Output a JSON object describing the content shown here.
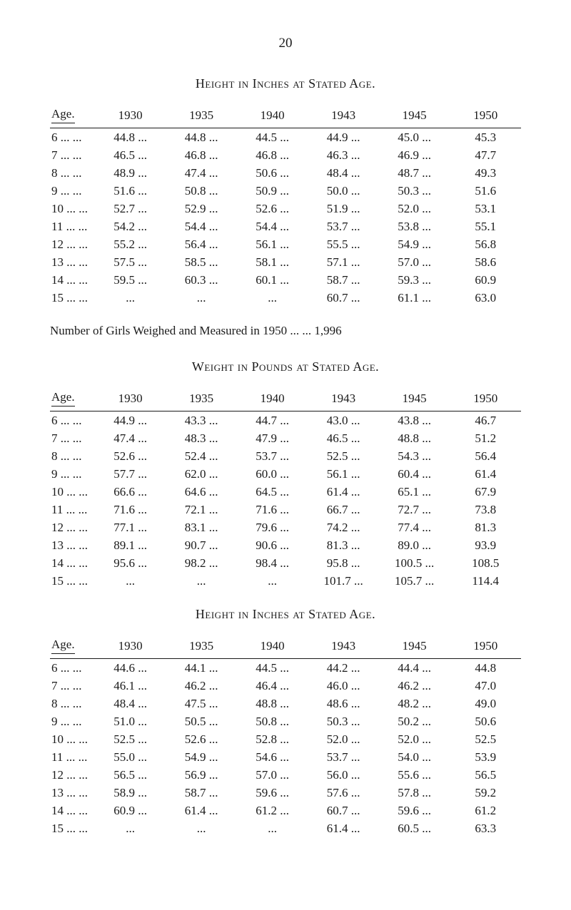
{
  "page_number": "20",
  "tables": [
    {
      "title": "Height in Inches at Stated Age.",
      "headers": [
        "Age.",
        "1930",
        "1935",
        "1940",
        "1943",
        "1945",
        "1950"
      ],
      "rows": [
        {
          "age": "6",
          "v": [
            "44.8",
            "44.8",
            "44.5",
            "44.9",
            "45.0",
            "45.3"
          ]
        },
        {
          "age": "7",
          "v": [
            "46.5",
            "46.8",
            "46.8",
            "46.3",
            "46.9",
            "47.7"
          ]
        },
        {
          "age": "8",
          "v": [
            "48.9",
            "47.4",
            "50.6",
            "48.4",
            "48.7",
            "49.3"
          ]
        },
        {
          "age": "9",
          "v": [
            "51.6",
            "50.8",
            "50.9",
            "50.0",
            "50.3",
            "51.6"
          ]
        },
        {
          "age": "10",
          "v": [
            "52.7",
            "52.9",
            "52.6",
            "51.9",
            "52.0",
            "53.1"
          ]
        },
        {
          "age": "11",
          "v": [
            "54.2",
            "54.4",
            "54.4",
            "53.7",
            "53.8",
            "55.1"
          ]
        },
        {
          "age": "12",
          "v": [
            "55.2",
            "56.4",
            "56.1",
            "55.5",
            "54.9",
            "56.8"
          ]
        },
        {
          "age": "13",
          "v": [
            "57.5",
            "58.5",
            "58.1",
            "57.1",
            "57.0",
            "58.6"
          ]
        },
        {
          "age": "14",
          "v": [
            "59.5",
            "60.3",
            "60.1",
            "58.7",
            "59.3",
            "60.9"
          ]
        },
        {
          "age": "15",
          "v": [
            "",
            "",
            "",
            "60.7",
            "61.1",
            "63.0"
          ]
        }
      ]
    },
    {
      "title": "Weight in Pounds at Stated Age.",
      "headers": [
        "Age.",
        "1930",
        "1935",
        "1940",
        "1943",
        "1945",
        "1950"
      ],
      "rows": [
        {
          "age": "6",
          "v": [
            "44.9",
            "43.3",
            "44.7",
            "43.0",
            "43.8",
            "46.7"
          ]
        },
        {
          "age": "7",
          "v": [
            "47.4",
            "48.3",
            "47.9",
            "46.5",
            "48.8",
            "51.2"
          ]
        },
        {
          "age": "8",
          "v": [
            "52.6",
            "52.4",
            "53.7",
            "52.5",
            "54.3",
            "56.4"
          ]
        },
        {
          "age": "9",
          "v": [
            "57.7",
            "62.0",
            "60.0",
            "56.1",
            "60.4",
            "61.4"
          ]
        },
        {
          "age": "10",
          "v": [
            "66.6",
            "64.6",
            "64.5",
            "61.4",
            "65.1",
            "67.9"
          ]
        },
        {
          "age": "11",
          "v": [
            "71.6",
            "72.1",
            "71.6",
            "66.7",
            "72.7",
            "73.8"
          ]
        },
        {
          "age": "12",
          "v": [
            "77.1",
            "83.1",
            "79.6",
            "74.2",
            "77.4",
            "81.3"
          ]
        },
        {
          "age": "13",
          "v": [
            "89.1",
            "90.7",
            "90.6",
            "81.3",
            "89.0",
            "93.9"
          ]
        },
        {
          "age": "14",
          "v": [
            "95.6",
            "98.2",
            "98.4",
            "95.8",
            "100.5",
            "108.5"
          ]
        },
        {
          "age": "15",
          "v": [
            "",
            "",
            "",
            "101.7",
            "105.7",
            "114.4"
          ]
        }
      ]
    },
    {
      "title": "Height in Inches at Stated Age.",
      "headers": [
        "Age.",
        "1930",
        "1935",
        "1940",
        "1943",
        "1945",
        "1950"
      ],
      "rows": [
        {
          "age": "6",
          "v": [
            "44.6",
            "44.1",
            "44.5",
            "44.2",
            "44.4",
            "44.8"
          ]
        },
        {
          "age": "7",
          "v": [
            "46.1",
            "46.2",
            "46.4",
            "46.0",
            "46.2",
            "47.0"
          ]
        },
        {
          "age": "8",
          "v": [
            "48.4",
            "47.5",
            "48.8",
            "48.6",
            "48.2",
            "49.0"
          ]
        },
        {
          "age": "9",
          "v": [
            "51.0",
            "50.5",
            "50.8",
            "50.3",
            "50.2",
            "50.6"
          ]
        },
        {
          "age": "10",
          "v": [
            "52.5",
            "52.6",
            "52.8",
            "52.0",
            "52.0",
            "52.5"
          ]
        },
        {
          "age": "11",
          "v": [
            "55.0",
            "54.9",
            "54.6",
            "53.7",
            "54.0",
            "53.9"
          ]
        },
        {
          "age": "12",
          "v": [
            "56.5",
            "56.9",
            "57.0",
            "56.0",
            "55.6",
            "56.5"
          ]
        },
        {
          "age": "13",
          "v": [
            "58.9",
            "58.7",
            "59.6",
            "57.6",
            "57.8",
            "59.2"
          ]
        },
        {
          "age": "14",
          "v": [
            "60.9",
            "61.4",
            "61.2",
            "60.7",
            "59.6",
            "61.2"
          ]
        },
        {
          "age": "15",
          "v": [
            "",
            "",
            "",
            "61.4",
            "60.5",
            "63.3"
          ]
        }
      ]
    }
  ],
  "measured_line": "Number of Girls Weighed and Measured in 1950 ...   ...   1,996"
}
